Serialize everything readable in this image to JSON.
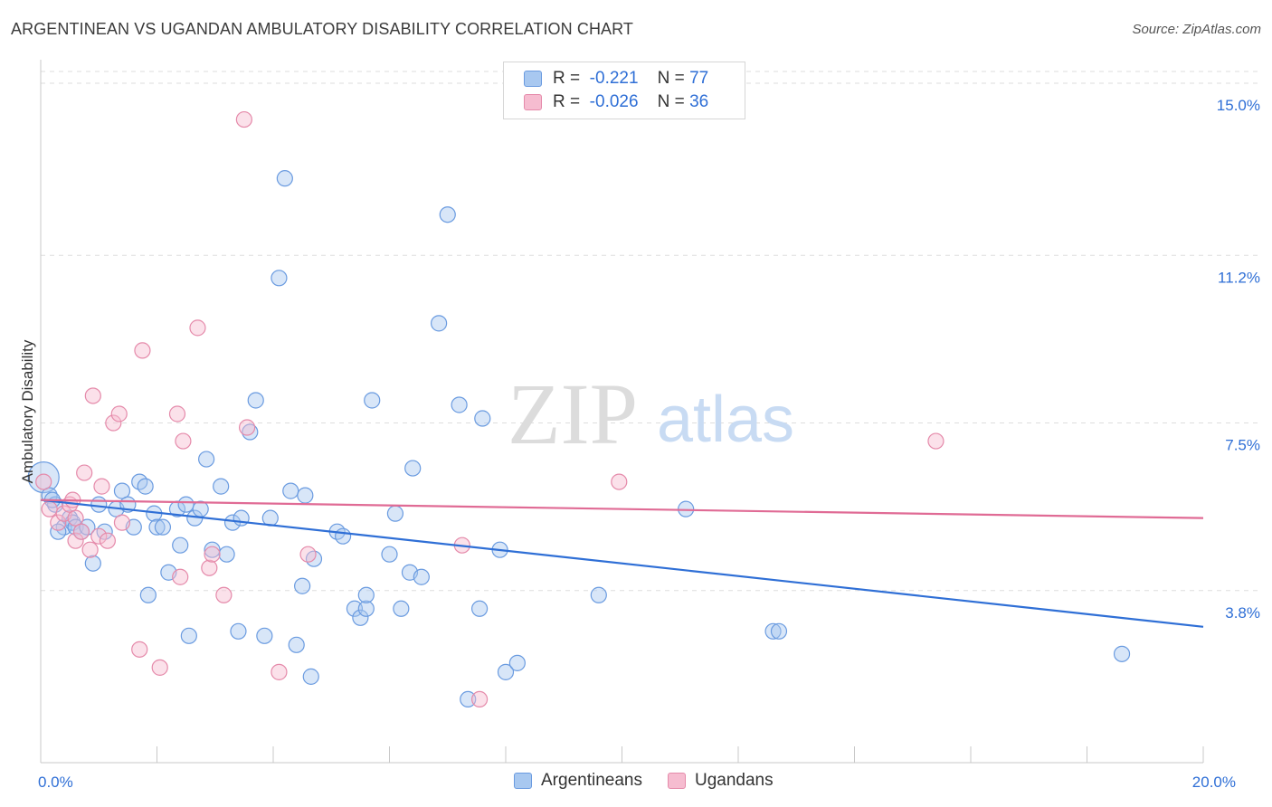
{
  "title": "ARGENTINEAN VS UGANDAN AMBULATORY DISABILITY CORRELATION CHART",
  "source": "Source: ZipAtlas.com",
  "watermark": {
    "zip": "ZIP",
    "atlas": "atlas"
  },
  "legend": {
    "rows": [
      {
        "r_label": "R =",
        "r_value": "-0.221",
        "n_label": "N =",
        "n_value": "77",
        "color": "#a8c8f0",
        "border": "#6a9be0"
      },
      {
        "r_label": "R =",
        "r_value": "-0.026",
        "n_label": "N =",
        "n_value": "36",
        "color": "#f6bcd0",
        "border": "#e58aaa"
      }
    ]
  },
  "bottom_legend": [
    {
      "name": "Argentineans",
      "color": "#a8c8f0",
      "border": "#6a9be0"
    },
    {
      "name": "Ugandans",
      "color": "#f6bcd0",
      "border": "#e58aaa"
    }
  ],
  "chart_data": {
    "type": "scatter",
    "title": "ARGENTINEAN VS UGANDAN AMBULATORY DISABILITY CORRELATION CHART",
    "xlabel": "",
    "ylabel": "Ambulatory Disability",
    "xlim": [
      0,
      20
    ],
    "ylim": [
      0,
      15.4
    ],
    "x_tick_labels": [
      {
        "value": 0,
        "label": "0.0%"
      },
      {
        "value": 20,
        "label": "20.0%"
      }
    ],
    "y_tick_labels": [
      {
        "value": 3.8,
        "label": "3.8%"
      },
      {
        "value": 7.5,
        "label": "7.5%"
      },
      {
        "value": 11.2,
        "label": "11.2%"
      },
      {
        "value": 15.0,
        "label": "15.0%"
      }
    ],
    "grid": true,
    "legend_position": "top-center",
    "series": [
      {
        "name": "Argentineans",
        "color": "#6a9be0",
        "fill": "#a8c8f0",
        "trend": {
          "x": [
            0,
            20
          ],
          "y": [
            5.8,
            3.0
          ],
          "color": "#2f6fd6"
        },
        "points": [
          [
            0.05,
            6.3
          ],
          [
            0.15,
            5.9
          ],
          [
            0.25,
            5.7
          ],
          [
            0.4,
            5.2
          ],
          [
            0.5,
            5.4
          ],
          [
            0.55,
            5.3
          ],
          [
            0.6,
            5.2
          ],
          [
            0.7,
            5.1
          ],
          [
            0.8,
            5.2
          ],
          [
            0.9,
            4.4
          ],
          [
            1.0,
            5.7
          ],
          [
            1.1,
            5.1
          ],
          [
            1.3,
            5.6
          ],
          [
            1.4,
            6.0
          ],
          [
            1.5,
            5.7
          ],
          [
            1.6,
            5.2
          ],
          [
            1.7,
            6.2
          ],
          [
            1.8,
            6.1
          ],
          [
            1.85,
            3.7
          ],
          [
            1.95,
            5.5
          ],
          [
            2.0,
            5.2
          ],
          [
            2.1,
            5.2
          ],
          [
            2.2,
            4.2
          ],
          [
            2.35,
            5.6
          ],
          [
            2.4,
            4.8
          ],
          [
            2.5,
            5.7
          ],
          [
            2.55,
            2.8
          ],
          [
            2.65,
            5.4
          ],
          [
            2.75,
            5.6
          ],
          [
            2.85,
            6.7
          ],
          [
            2.95,
            4.7
          ],
          [
            3.1,
            6.1
          ],
          [
            3.2,
            4.6
          ],
          [
            3.3,
            5.3
          ],
          [
            3.4,
            2.9
          ],
          [
            3.45,
            5.4
          ],
          [
            3.6,
            7.3
          ],
          [
            3.7,
            8.0
          ],
          [
            3.85,
            2.8
          ],
          [
            3.95,
            5.4
          ],
          [
            4.1,
            10.7
          ],
          [
            4.2,
            12.9
          ],
          [
            4.3,
            6.0
          ],
          [
            4.4,
            2.6
          ],
          [
            4.5,
            3.9
          ],
          [
            4.55,
            5.9
          ],
          [
            4.65,
            1.9
          ],
          [
            4.7,
            4.5
          ],
          [
            5.1,
            5.1
          ],
          [
            5.2,
            5.0
          ],
          [
            5.4,
            3.4
          ],
          [
            5.5,
            3.2
          ],
          [
            5.6,
            3.4
          ],
          [
            5.6,
            3.7
          ],
          [
            5.7,
            8.0
          ],
          [
            6.0,
            4.6
          ],
          [
            6.1,
            5.5
          ],
          [
            6.2,
            3.4
          ],
          [
            6.35,
            4.2
          ],
          [
            6.4,
            6.5
          ],
          [
            6.55,
            4.1
          ],
          [
            6.85,
            9.7
          ],
          [
            7.0,
            12.1
          ],
          [
            7.2,
            7.9
          ],
          [
            7.35,
            1.4
          ],
          [
            7.55,
            3.4
          ],
          [
            7.6,
            7.6
          ],
          [
            7.9,
            4.7
          ],
          [
            8.0,
            2.0
          ],
          [
            8.2,
            2.2
          ],
          [
            9.6,
            3.7
          ],
          [
            11.1,
            5.6
          ],
          [
            12.6,
            2.9
          ],
          [
            12.7,
            2.9
          ],
          [
            18.6,
            2.4
          ],
          [
            0.2,
            5.8
          ],
          [
            0.3,
            5.1
          ]
        ]
      },
      {
        "name": "Ugandans",
        "color": "#e58aaa",
        "fill": "#f6bcd0",
        "trend": {
          "x": [
            0,
            20
          ],
          "y": [
            5.8,
            5.4
          ],
          "color": "#e06b95"
        },
        "points": [
          [
            0.05,
            6.2
          ],
          [
            0.15,
            5.6
          ],
          [
            0.3,
            5.3
          ],
          [
            0.4,
            5.5
          ],
          [
            0.5,
            5.7
          ],
          [
            0.55,
            5.8
          ],
          [
            0.6,
            5.4
          ],
          [
            0.6,
            4.9
          ],
          [
            0.7,
            5.1
          ],
          [
            0.75,
            6.4
          ],
          [
            0.85,
            4.7
          ],
          [
            0.9,
            8.1
          ],
          [
            1.0,
            5.0
          ],
          [
            1.05,
            6.1
          ],
          [
            1.15,
            4.9
          ],
          [
            1.25,
            7.5
          ],
          [
            1.35,
            7.7
          ],
          [
            1.4,
            5.3
          ],
          [
            1.7,
            2.5
          ],
          [
            1.75,
            9.1
          ],
          [
            2.05,
            2.1
          ],
          [
            2.35,
            7.7
          ],
          [
            2.4,
            4.1
          ],
          [
            2.45,
            7.1
          ],
          [
            2.7,
            9.6
          ],
          [
            2.9,
            4.3
          ],
          [
            2.95,
            4.6
          ],
          [
            3.15,
            3.7
          ],
          [
            3.5,
            14.2
          ],
          [
            3.55,
            7.4
          ],
          [
            4.1,
            2.0
          ],
          [
            4.6,
            4.6
          ],
          [
            7.25,
            4.8
          ],
          [
            7.55,
            1.4
          ],
          [
            9.95,
            6.2
          ],
          [
            15.4,
            7.1
          ]
        ]
      }
    ]
  }
}
